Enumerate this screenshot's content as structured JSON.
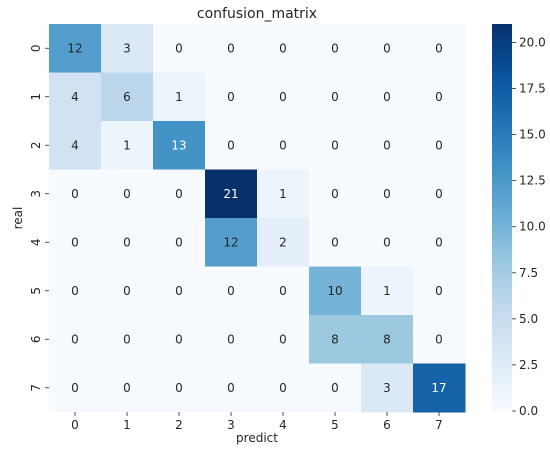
{
  "chart_data": {
    "type": "heatmap",
    "title": "confusion_matrix",
    "xlabel": "predict",
    "ylabel": "real",
    "x_categories": [
      "0",
      "1",
      "2",
      "3",
      "4",
      "5",
      "6",
      "7"
    ],
    "y_categories": [
      "0",
      "1",
      "2",
      "3",
      "4",
      "5",
      "6",
      "7"
    ],
    "values": [
      [
        12,
        3,
        0,
        0,
        0,
        0,
        0,
        0
      ],
      [
        4,
        6,
        1,
        0,
        0,
        0,
        0,
        0
      ],
      [
        4,
        1,
        13,
        0,
        0,
        0,
        0,
        0
      ],
      [
        0,
        0,
        0,
        21,
        1,
        0,
        0,
        0
      ],
      [
        0,
        0,
        0,
        12,
        2,
        0,
        0,
        0
      ],
      [
        0,
        0,
        0,
        0,
        0,
        10,
        1,
        0
      ],
      [
        0,
        0,
        0,
        0,
        0,
        8,
        8,
        0
      ],
      [
        0,
        0,
        0,
        0,
        0,
        0,
        3,
        17
      ]
    ],
    "value_range": [
      0,
      21
    ],
    "colormap": "Blues",
    "colorbar_ticks": [
      "0.0",
      "2.5",
      "5.0",
      "7.5",
      "10.0",
      "12.5",
      "15.0",
      "17.5",
      "20.0"
    ],
    "colorbar_tick_values": [
      0,
      2.5,
      5,
      7.5,
      10,
      12.5,
      15,
      17.5,
      20
    ],
    "legend_placement": "right colorbar",
    "grid": false
  }
}
